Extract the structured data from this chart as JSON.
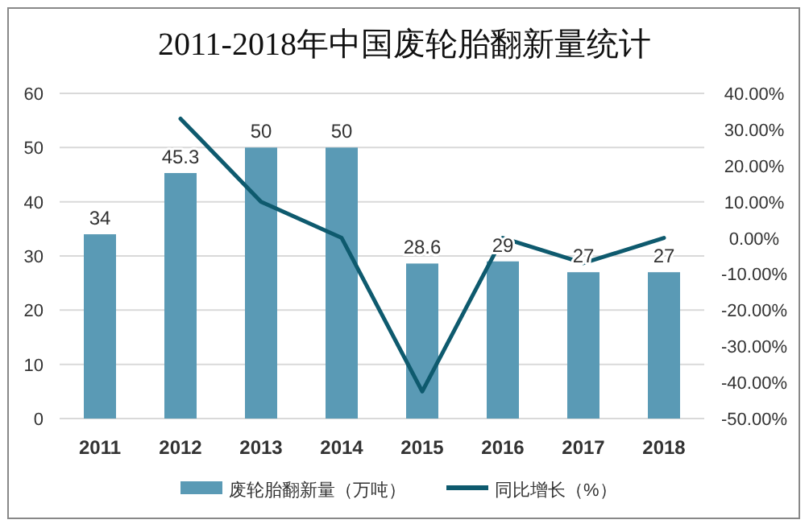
{
  "chart_data": {
    "type": "bar",
    "title": "2011-2018年中国废轮胎翻新量统计",
    "categories": [
      "2011",
      "2012",
      "2013",
      "2014",
      "2015",
      "2016",
      "2017",
      "2018"
    ],
    "series": [
      {
        "name": "废轮胎翻新量（万吨）",
        "color": "#5a9ab5",
        "values": [
          34,
          45.3,
          50,
          50,
          28.6,
          29,
          27,
          27
        ],
        "value_labels": [
          "34",
          "45.3",
          "50",
          "50",
          "28.6",
          "29",
          "27",
          "27"
        ]
      },
      {
        "name": "同比增长（%）",
        "type": "line",
        "axis": "y2",
        "color": "#0e5a6e",
        "values": [
          null,
          33,
          10,
          0,
          -42.5,
          0,
          -7,
          0
        ]
      }
    ],
    "ylim": [
      0,
      60
    ],
    "yticks": [
      0,
      10,
      20,
      30,
      40,
      50,
      60
    ],
    "y2lim": [
      -50,
      40
    ],
    "y2ticks": [
      {
        "value": -50,
        "label": "-50.00%"
      },
      {
        "value": -40,
        "label": "-40.00%"
      },
      {
        "value": -30,
        "label": "-30.00%"
      },
      {
        "value": -20,
        "label": "-20.00%"
      },
      {
        "value": -10,
        "label": "-10.00%"
      },
      {
        "value": 0,
        "label": "0.00%"
      },
      {
        "value": 10,
        "label": "10.00%"
      },
      {
        "value": 20,
        "label": "20.00%"
      },
      {
        "value": 30,
        "label": "30.00%"
      },
      {
        "value": 40,
        "label": "40.00%"
      }
    ],
    "grid": "y",
    "legend": "bottom"
  }
}
